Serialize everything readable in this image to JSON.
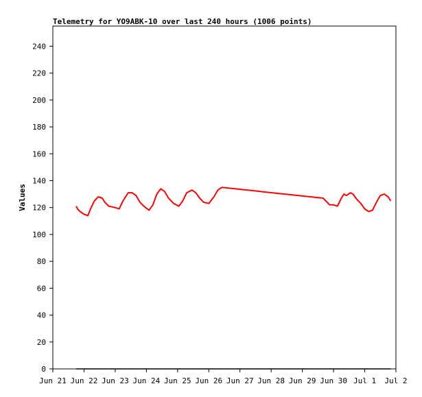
{
  "chart_data": {
    "type": "line",
    "title": "Telemetry for YO9ABK-10 over last 240 hours (1006 points)",
    "xlabel": "",
    "ylabel": "Values",
    "ylim": [
      0,
      255
    ],
    "yticks": [
      0,
      20,
      40,
      60,
      80,
      100,
      120,
      140,
      160,
      180,
      200,
      220,
      240
    ],
    "xlim": [
      "2024-06-21",
      "2024-07-02"
    ],
    "xticks": [
      {
        "date": "2024-06-21",
        "label": "Jun 21"
      },
      {
        "date": "2024-06-22",
        "label": "Jun 22"
      },
      {
        "date": "2024-06-23",
        "label": "Jun 23"
      },
      {
        "date": "2024-06-24",
        "label": "Jun 24"
      },
      {
        "date": "2024-06-25",
        "label": "Jun 25"
      },
      {
        "date": "2024-06-26",
        "label": "Jun 26"
      },
      {
        "date": "2024-06-27",
        "label": "Jun 27"
      },
      {
        "date": "2024-06-28",
        "label": "Jun 28"
      },
      {
        "date": "2024-06-29",
        "label": "Jun 29"
      },
      {
        "date": "2024-06-30",
        "label": "Jun 30"
      },
      {
        "date": "2024-07-01",
        "label": "Jul 1"
      },
      {
        "date": "2024-07-02",
        "label": "Jul 2"
      }
    ],
    "grid": false,
    "series": [
      {
        "color": "#ff0000",
        "points": [
          [
            "2024-06-21T18:00",
            121
          ],
          [
            "2024-06-21T19:00",
            119
          ],
          [
            "2024-06-21T21:00",
            117
          ],
          [
            "2024-06-22T00:00",
            115
          ],
          [
            "2024-06-22T03:00",
            114
          ],
          [
            "2024-06-22T05:00",
            119
          ],
          [
            "2024-06-22T08:00",
            125
          ],
          [
            "2024-06-22T11:00",
            128
          ],
          [
            "2024-06-22T14:00",
            127
          ],
          [
            "2024-06-22T16:00",
            124
          ],
          [
            "2024-06-22T19:00",
            121
          ],
          [
            "2024-06-23T00:00",
            120
          ],
          [
            "2024-06-23T03:00",
            119
          ],
          [
            "2024-06-23T06:00",
            125
          ],
          [
            "2024-06-23T10:00",
            131
          ],
          [
            "2024-06-23T13:00",
            131
          ],
          [
            "2024-06-23T16:00",
            129
          ],
          [
            "2024-06-23T19:00",
            124
          ],
          [
            "2024-06-23T22:00",
            121
          ],
          [
            "2024-06-24T02:00",
            118
          ],
          [
            "2024-06-24T05:00",
            122
          ],
          [
            "2024-06-24T08:00",
            130
          ],
          [
            "2024-06-24T11:00",
            134
          ],
          [
            "2024-06-24T14:00",
            132
          ],
          [
            "2024-06-24T17:00",
            127
          ],
          [
            "2024-06-24T21:00",
            123
          ],
          [
            "2024-06-25T01:00",
            121
          ],
          [
            "2024-06-25T04:00",
            125
          ],
          [
            "2024-06-25T07:00",
            131
          ],
          [
            "2024-06-25T11:00",
            133
          ],
          [
            "2024-06-25T14:00",
            131
          ],
          [
            "2024-06-25T17:00",
            127
          ],
          [
            "2024-06-25T20:00",
            124
          ],
          [
            "2024-06-26T00:00",
            123
          ],
          [
            "2024-06-26T04:00",
            128
          ],
          [
            "2024-06-26T07:00",
            133
          ],
          [
            "2024-06-26T10:00",
            135
          ],
          [
            "2024-06-29T16:00",
            127
          ],
          [
            "2024-06-29T18:00",
            125
          ],
          [
            "2024-06-29T21:00",
            122
          ],
          [
            "2024-06-30T00:00",
            122
          ],
          [
            "2024-06-30T03:00",
            121
          ],
          [
            "2024-06-30T06:00",
            127
          ],
          [
            "2024-06-30T08:00",
            130
          ],
          [
            "2024-06-30T10:00",
            129
          ],
          [
            "2024-06-30T13:00",
            131
          ],
          [
            "2024-06-30T15:00",
            130
          ],
          [
            "2024-06-30T18:00",
            126
          ],
          [
            "2024-06-30T21:00",
            123
          ],
          [
            "2024-07-01T00:00",
            119
          ],
          [
            "2024-07-01T03:00",
            117
          ],
          [
            "2024-07-01T06:00",
            118
          ],
          [
            "2024-07-01T09:00",
            124
          ],
          [
            "2024-07-01T12:00",
            129
          ],
          [
            "2024-07-01T15:00",
            130
          ],
          [
            "2024-07-01T18:00",
            128
          ],
          [
            "2024-07-01T20:00",
            125
          ]
        ]
      },
      {
        "color": "#000000",
        "points": [
          [
            "2024-06-21T18:00",
            0
          ],
          [
            "2024-07-01T20:00",
            0
          ]
        ]
      }
    ]
  }
}
